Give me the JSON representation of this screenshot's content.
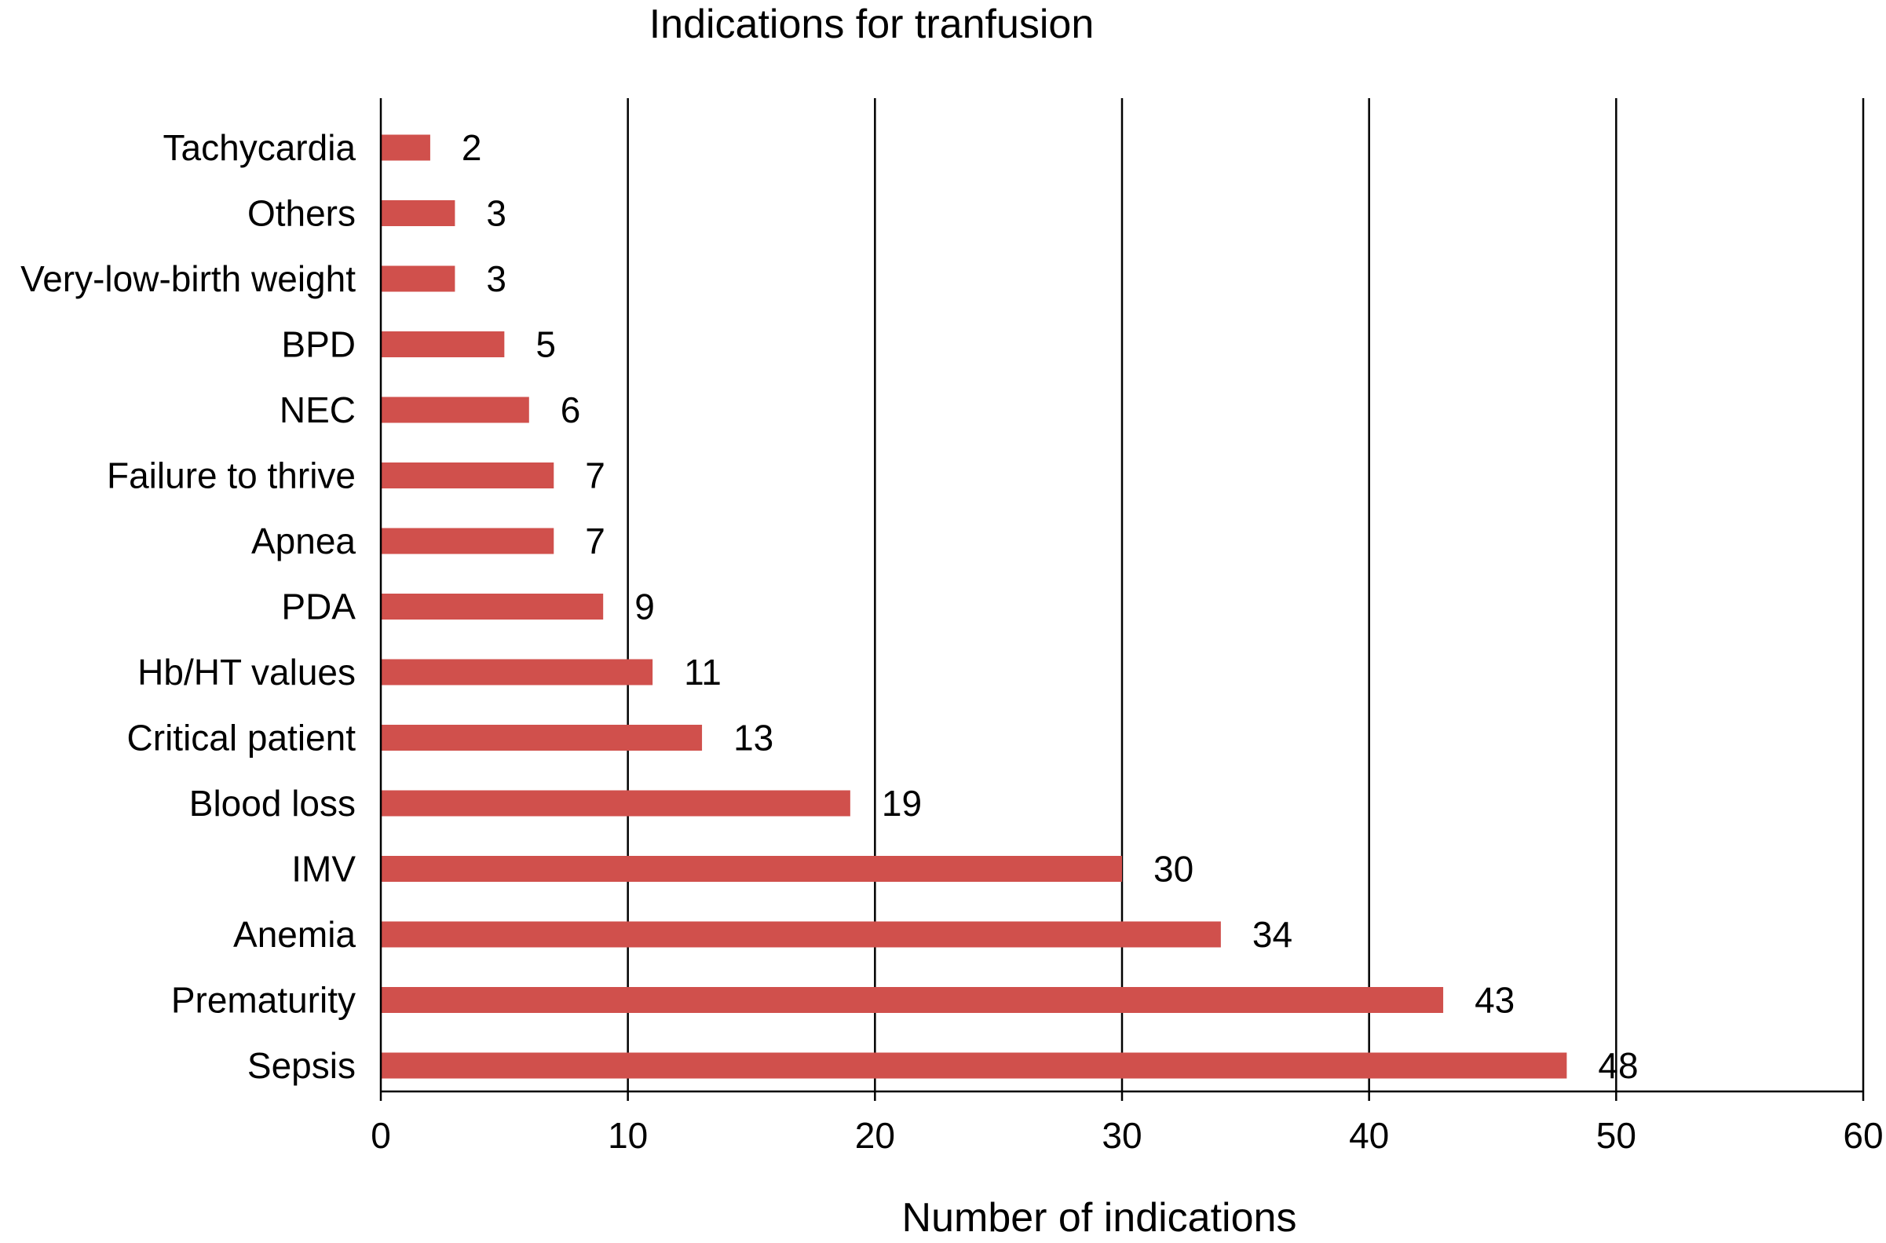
{
  "chart_data": {
    "type": "bar",
    "orientation": "horizontal",
    "title": "Indications for tranfusion",
    "xlabel": "Number of indications",
    "ylabel": "",
    "xlim": [
      0,
      60
    ],
    "x_ticks": [
      "0",
      "10",
      "20",
      "30",
      "40",
      "50",
      "60"
    ],
    "grid": "vertical",
    "legend": "none",
    "categories": [
      "Tachycardia",
      "Others",
      "Very-low-birth weight",
      "BPD",
      "NEC",
      "Failure to thrive",
      "Apnea",
      "PDA",
      "Hb/HT values",
      "Critical patient",
      "Blood loss",
      "IMV",
      "Anemia",
      "Prematurity",
      "Sepsis"
    ],
    "values": [
      2,
      3,
      3,
      5,
      6,
      7,
      7,
      9,
      11,
      13,
      19,
      30,
      34,
      43,
      48
    ],
    "value_labels": [
      "2",
      "3",
      "3",
      "5",
      "6",
      "7",
      "7",
      "9",
      "11",
      "13",
      "19",
      "30",
      "34",
      "43",
      "48"
    ],
    "colors": {
      "bar": "#d0504c",
      "axis": "#000000",
      "grid": "#000000"
    }
  }
}
